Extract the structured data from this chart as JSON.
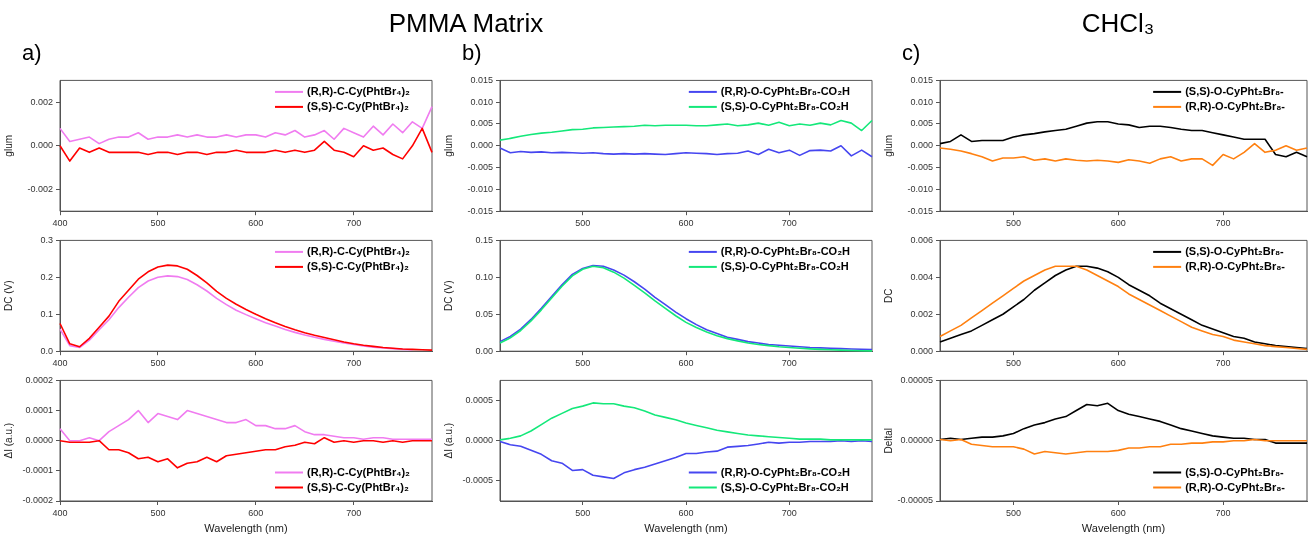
{
  "chart_data": [
    {
      "type": "line",
      "title": "a)",
      "annotations": [
        "PMMA Matrix"
      ],
      "ylabel": "glum",
      "legend": "top right",
      "xlim": [
        400,
        780
      ],
      "xticks": [
        400,
        500,
        600,
        700
      ],
      "ylim": [
        -0.003,
        0.003
      ],
      "yticks": [
        -0.002,
        {
          "value": 0,
          "label": "0.000"
        },
        0.002
      ],
      "x": [
        400,
        410,
        420,
        430,
        440,
        450,
        460,
        470,
        480,
        490,
        500,
        510,
        520,
        530,
        540,
        550,
        560,
        570,
        580,
        590,
        600,
        610,
        620,
        630,
        640,
        650,
        660,
        670,
        680,
        690,
        700,
        710,
        720,
        730,
        740,
        750,
        760,
        770,
        780
      ],
      "series": [
        {
          "name": "(R,R)-C-Cy(PhtBr₄)₂",
          "color": "#f07cf0",
          "values": [
            0.0008,
            0.0002,
            0.0003,
            0.0004,
            0.0001,
            0.0003,
            0.0004,
            0.0004,
            0.0006,
            0.0003,
            0.0004,
            0.0004,
            0.0005,
            0.0004,
            0.0005,
            0.0004,
            0.0004,
            0.0005,
            0.0004,
            0.0005,
            0.0005,
            0.0004,
            0.0006,
            0.0005,
            0.0007,
            0.0004,
            0.0005,
            0.0007,
            0.0003,
            0.0008,
            0.0006,
            0.0004,
            0.0009,
            0.0005,
            0.001,
            0.0006,
            0.0011,
            0.0008,
            0.0018
          ]
        },
        {
          "name": "(S,S)-C-Cy(PhtBr₄)₂",
          "color": "#ff0000",
          "values": [
            0,
            -0.0007,
            -0.0001,
            -0.0003,
            -0.0001,
            -0.0003,
            -0.0003,
            -0.0003,
            -0.0003,
            -0.0004,
            -0.0003,
            -0.0003,
            -0.0004,
            -0.0003,
            -0.0003,
            -0.0004,
            -0.0003,
            -0.0003,
            -0.0002,
            -0.0003,
            -0.0003,
            -0.0003,
            -0.0002,
            -0.0003,
            -0.0002,
            -0.0003,
            -0.0002,
            0.0002,
            -0.0002,
            -0.0003,
            -0.0005,
            0,
            -0.0002,
            -0.0001,
            -0.0004,
            -0.0006,
            0,
            0.0008,
            -0.0003
          ]
        }
      ]
    },
    {
      "type": "line",
      "ylabel": "DC (V)",
      "legend": "top right",
      "xlim": [
        400,
        780
      ],
      "xticks": [
        400,
        500,
        600,
        700
      ],
      "ylim": [
        0,
        0.3
      ],
      "yticks": [
        {
          "value": 0,
          "label": "0.0"
        },
        0.1,
        0.2,
        0.3
      ],
      "x": [
        400,
        410,
        420,
        430,
        440,
        450,
        460,
        470,
        480,
        490,
        500,
        510,
        520,
        530,
        540,
        550,
        560,
        570,
        580,
        590,
        600,
        610,
        620,
        630,
        640,
        650,
        660,
        670,
        680,
        690,
        700,
        710,
        720,
        730,
        740,
        750,
        760,
        770,
        780
      ],
      "series": [
        {
          "name": "(R,R)-C-Cy(PhtBr₄)₂",
          "color": "#f07cf0",
          "values": [
            0.06,
            0.015,
            0.01,
            0.03,
            0.058,
            0.085,
            0.118,
            0.146,
            0.172,
            0.19,
            0.2,
            0.204,
            0.202,
            0.194,
            0.18,
            0.163,
            0.143,
            0.126,
            0.111,
            0.099,
            0.088,
            0.077,
            0.068,
            0.059,
            0.051,
            0.044,
            0.038,
            0.032,
            0.027,
            0.022,
            0.018,
            0.014,
            0.011,
            0.009,
            0.007,
            0.005,
            0.004,
            null,
            null
          ]
        },
        {
          "name": "(S,S)-C-Cy(PhtBr₄)₂",
          "color": "#ff0000",
          "values": [
            0.075,
            0.02,
            0.012,
            0.035,
            0.065,
            0.095,
            0.135,
            0.165,
            0.195,
            0.215,
            0.228,
            0.233,
            0.231,
            0.222,
            0.205,
            0.185,
            0.162,
            0.143,
            0.127,
            0.113,
            0.1,
            0.088,
            0.077,
            0.067,
            0.058,
            0.05,
            0.043,
            0.037,
            0.031,
            0.025,
            0.02,
            0.016,
            0.013,
            0.01,
            0.008,
            0.006,
            0.005,
            0.004,
            0.003
          ]
        }
      ]
    },
    {
      "type": "line",
      "xlabel": "Wavelength (nm)",
      "ylabel": "ΔI (a.u.)",
      "legend": "bottom right",
      "xlim": [
        400,
        780
      ],
      "xticks": [
        400,
        500,
        600,
        700
      ],
      "ylim": [
        -0.0002,
        0.0002
      ],
      "yticks": [
        -0.0002,
        -0.0001,
        {
          "value": 0,
          "label": "0.0000"
        },
        0.0001,
        0.0002
      ],
      "x": [
        400,
        410,
        420,
        430,
        440,
        450,
        460,
        470,
        480,
        490,
        500,
        510,
        520,
        530,
        540,
        550,
        560,
        570,
        580,
        590,
        600,
        610,
        620,
        630,
        640,
        650,
        660,
        670,
        680,
        690,
        700,
        710,
        720,
        730,
        740,
        750,
        760,
        770,
        780
      ],
      "series": [
        {
          "name": "(R,R)-C-Cy(PhtBr₄)₂",
          "color": "#f07cf0",
          "values": [
            4e-05,
            0,
            0,
            1e-05,
            0,
            3e-05,
            5e-05,
            7e-05,
            0.0001,
            6e-05,
            9e-05,
            8e-05,
            7e-05,
            0.0001,
            9e-05,
            8e-05,
            7e-05,
            6e-05,
            6e-05,
            7e-05,
            5e-05,
            5e-05,
            4e-05,
            4e-05,
            5e-05,
            3e-05,
            2e-05,
            2e-05,
            1.5e-05,
            1e-05,
            1e-05,
            5e-06,
            1e-05,
            1e-05,
            5e-06,
            5e-06,
            5e-06,
            5e-06,
            5e-06
          ]
        },
        {
          "name": "(S,S)-C-Cy(PhtBr₄)₂",
          "color": "#ff0000",
          "values": [
            0,
            -5e-06,
            -5e-06,
            -5e-06,
            0,
            -3e-05,
            -3e-05,
            -4e-05,
            -6e-05,
            -5.5e-05,
            -7e-05,
            -6e-05,
            -9e-05,
            -7.5e-05,
            -7e-05,
            -5.5e-05,
            -7e-05,
            -5e-05,
            -4.5e-05,
            -4e-05,
            -3.5e-05,
            -3e-05,
            -3e-05,
            -2e-05,
            -1.5e-05,
            -5e-06,
            -1e-05,
            1e-05,
            -5e-06,
            0,
            -5e-06,
            0,
            0,
            -5e-06,
            0,
            -5e-06,
            0,
            0,
            0
          ]
        }
      ]
    },
    {
      "type": "line",
      "title": "b)",
      "ylabel": "glum",
      "legend": "top right",
      "xlim": [
        420,
        780
      ],
      "xticks": [
        500,
        600,
        700
      ],
      "ylim": [
        -0.015,
        0.015
      ],
      "yticks": [
        -0.015,
        {
          "value": -0.01,
          "label": "-0.010"
        },
        -0.005,
        {
          "value": 0,
          "label": "0.000"
        },
        0.005,
        {
          "value": 0.01,
          "label": "0.010"
        },
        0.015
      ],
      "x": [
        420,
        430,
        440,
        450,
        460,
        470,
        480,
        490,
        500,
        510,
        520,
        530,
        540,
        550,
        560,
        570,
        580,
        590,
        600,
        610,
        620,
        630,
        640,
        650,
        660,
        670,
        680,
        690,
        700,
        710,
        720,
        730,
        740,
        750,
        760,
        770,
        780
      ],
      "series": [
        {
          "name": "(R,R)-O-CyPht₂Br₈-CO₂H",
          "color": "#4646f0",
          "values": [
            -0.0005,
            -0.0016,
            -0.0013,
            -0.0015,
            -0.0014,
            -0.0016,
            -0.0015,
            -0.0016,
            -0.0017,
            -0.0016,
            -0.0018,
            -0.0019,
            -0.0018,
            -0.0019,
            -0.0018,
            -0.0019,
            -0.002,
            -0.0018,
            -0.0016,
            -0.0017,
            -0.0018,
            -0.002,
            -0.0018,
            -0.0017,
            -0.0012,
            -0.002,
            -0.0008,
            -0.0016,
            -0.001,
            -0.0022,
            -0.0011,
            -0.001,
            -0.0012,
            0,
            -0.0023,
            -0.001,
            -0.0025
          ]
        },
        {
          "name": "(S,S)-O-CyPht₂Br₈-CO₂H",
          "color": "#14e87a",
          "values": [
            0.0013,
            0.0017,
            0.0022,
            0.0026,
            0.0029,
            0.0031,
            0.0034,
            0.0037,
            0.0038,
            0.0041,
            0.0042,
            0.0043,
            0.0044,
            0.0045,
            0.0047,
            0.0046,
            0.0047,
            0.0047,
            0.0047,
            0.0046,
            0.0046,
            0.0048,
            0.005,
            0.0046,
            0.0048,
            0.0052,
            0.0047,
            0.0054,
            0.0046,
            0.005,
            0.0047,
            0.0052,
            0.0048,
            0.0058,
            0.0052,
            0.0035,
            0.0058
          ]
        }
      ]
    },
    {
      "type": "line",
      "ylabel": "DC (V)",
      "legend": "top right",
      "xlim": [
        420,
        780
      ],
      "xticks": [
        500,
        600,
        700
      ],
      "ylim": [
        0,
        0.15
      ],
      "yticks": [
        {
          "value": 0,
          "label": "0.00"
        },
        0.05,
        {
          "value": 0.1,
          "label": "0.10"
        },
        0.15
      ],
      "x": [
        420,
        430,
        440,
        450,
        460,
        470,
        480,
        490,
        500,
        510,
        520,
        530,
        540,
        550,
        560,
        570,
        580,
        590,
        600,
        610,
        620,
        630,
        640,
        650,
        660,
        670,
        680,
        690,
        700,
        710,
        720,
        730,
        740,
        750,
        760,
        770,
        780
      ],
      "series": [
        {
          "name": "(R,R)-O-CyPht₂Br₈-CO₂H",
          "color": "#4646f0",
          "values": [
            0.013,
            0.02,
            0.03,
            0.043,
            0.058,
            0.074,
            0.09,
            0.104,
            0.112,
            0.116,
            0.115,
            0.11,
            0.103,
            0.094,
            0.084,
            0.073,
            0.063,
            0.053,
            0.044,
            0.036,
            0.029,
            0.024,
            0.019,
            0.016,
            0.013,
            0.011,
            0.009,
            0.008,
            0.007,
            0.006,
            0.005,
            0.0045,
            0.004,
            0.0035,
            0.003,
            0.0026,
            0.0023
          ]
        },
        {
          "name": "(S,S)-O-CyPht₂Br₈-CO₂H",
          "color": "#14e87a",
          "values": [
            0.011,
            0.018,
            0.028,
            0.041,
            0.056,
            0.072,
            0.088,
            0.102,
            0.111,
            0.115,
            0.113,
            0.107,
            0.099,
            0.089,
            0.079,
            0.068,
            0.058,
            0.048,
            0.039,
            0.032,
            0.026,
            0.021,
            0.017,
            0.014,
            0.011,
            0.009,
            0.0075,
            0.006,
            0.005,
            0.004,
            0.0032,
            0.0025,
            0.002,
            0.0015,
            0.001,
            0.0007,
            0.0004
          ]
        }
      ]
    },
    {
      "type": "line",
      "xlabel": "Wavelength (nm)",
      "ylabel": "ΔI (a.u.)",
      "legend": "bottom right",
      "xlim": [
        420,
        780
      ],
      "xticks": [
        500,
        600,
        700
      ],
      "ylim": [
        -0.00075,
        0.00075
      ],
      "yticks": [
        -0.0005,
        {
          "value": 0,
          "label": "0.0000"
        },
        0.0005
      ],
      "x": [
        420,
        430,
        440,
        450,
        460,
        470,
        480,
        490,
        500,
        510,
        520,
        530,
        540,
        550,
        560,
        570,
        580,
        590,
        600,
        610,
        620,
        630,
        640,
        650,
        660,
        670,
        680,
        690,
        700,
        710,
        720,
        730,
        740,
        750,
        760,
        770,
        780
      ],
      "series": [
        {
          "name": "(R,R)-O-CyPht₂Br₈-CO₂H",
          "color": "#4646f0",
          "values": [
            -1e-05,
            -5e-05,
            -7e-05,
            -0.00012,
            -0.00017,
            -0.00025,
            -0.00028,
            -0.00037,
            -0.00036,
            -0.00043,
            -0.00045,
            -0.00047,
            -0.0004,
            -0.00036,
            -0.00033,
            -0.00029,
            -0.00025,
            -0.00021,
            -0.00016,
            -0.00016,
            -0.00014,
            -0.00013,
            -8e-05,
            -7e-05,
            -6e-05,
            -4e-05,
            -2e-05,
            -3e-05,
            -2e-05,
            -2e-05,
            -1e-05,
            -1e-05,
            -1e-05,
            0,
            -1e-05,
            0,
            -1e-05
          ]
        },
        {
          "name": "(S,S)-O-CyPht₂Br₈-CO₂H",
          "color": "#14e87a",
          "values": [
            1e-05,
            3e-05,
            6e-05,
            0.00012,
            0.0002,
            0.00028,
            0.00034,
            0.0004,
            0.00043,
            0.00047,
            0.00046,
            0.00046,
            0.00043,
            0.00041,
            0.00037,
            0.00032,
            0.00029,
            0.00026,
            0.00022,
            0.00019,
            0.00016,
            0.00013,
            0.00011,
            9e-05,
            7e-05,
            6e-05,
            5e-05,
            4e-05,
            3e-05,
            2e-05,
            2e-05,
            2e-05,
            1e-05,
            1e-05,
            1e-05,
            1e-05,
            1e-05
          ]
        }
      ]
    },
    {
      "type": "line",
      "title": "c)",
      "annotations": [
        "CHCl₃"
      ],
      "ylabel": "glum",
      "legend": "top right",
      "xlim": [
        430,
        780
      ],
      "xticks": [
        500,
        600,
        700
      ],
      "ylim": [
        -0.015,
        0.015
      ],
      "yticks": [
        -0.015,
        {
          "value": -0.01,
          "label": "-0.010"
        },
        -0.005,
        {
          "value": 0,
          "label": "0.000"
        },
        0.005,
        {
          "value": 0.01,
          "label": "0.010"
        },
        0.015
      ],
      "x": [
        430,
        440,
        450,
        460,
        470,
        480,
        490,
        500,
        510,
        520,
        530,
        540,
        550,
        560,
        570,
        580,
        590,
        600,
        610,
        620,
        630,
        640,
        650,
        660,
        670,
        680,
        690,
        700,
        710,
        720,
        730,
        740,
        750,
        760,
        770,
        780
      ],
      "series": [
        {
          "name": "(S,S)-O-CyPht₂Br₈-",
          "color": "#000000",
          "values": [
            0.0005,
            0.001,
            0.0025,
            0.001,
            0.0012,
            0.0012,
            0.0012,
            0.002,
            0.0025,
            0.0028,
            0.0032,
            0.0035,
            0.0038,
            0.0045,
            0.0052,
            0.0055,
            0.0055,
            0.005,
            0.0048,
            0.0042,
            0.0045,
            0.0045,
            0.0042,
            0.0038,
            0.0035,
            0.0035,
            0.003,
            0.0025,
            0.002,
            0.0015,
            0.0015,
            0.0015,
            -0.002,
            -0.0025,
            -0.0015,
            -0.0025
          ]
        },
        {
          "name": "(R,R)-O-CyPht₂Br₈-",
          "color": "#ff8010",
          "values": [
            -0.0005,
            -0.0008,
            -0.0012,
            -0.0018,
            -0.0025,
            -0.0035,
            -0.0028,
            -0.0028,
            -0.0025,
            -0.0033,
            -0.003,
            -0.0035,
            -0.003,
            -0.0033,
            -0.0035,
            -0.0033,
            -0.0035,
            -0.0038,
            -0.0032,
            -0.0035,
            -0.004,
            -0.003,
            -0.0025,
            -0.0035,
            -0.003,
            -0.003,
            -0.0045,
            -0.002,
            -0.003,
            -0.0015,
            0.0005,
            -0.0015,
            -0.001,
            0,
            -0.001,
            -0.0005
          ]
        }
      ]
    },
    {
      "type": "line",
      "ylabel": "DC",
      "legend": "top right",
      "xlim": [
        430,
        780
      ],
      "xticks": [
        500,
        600,
        700
      ],
      "ylim": [
        0,
        0.006
      ],
      "yticks": [
        {
          "value": 0,
          "label": "0.000"
        },
        0.002,
        0.004,
        0.006
      ],
      "x": [
        430,
        440,
        450,
        460,
        470,
        480,
        490,
        500,
        510,
        520,
        530,
        540,
        550,
        560,
        570,
        580,
        590,
        600,
        610,
        620,
        630,
        640,
        650,
        660,
        670,
        680,
        690,
        700,
        710,
        720,
        730,
        740,
        750,
        760,
        770,
        780
      ],
      "series": [
        {
          "name": "(S,S)-O-CyPht₂Br₈-",
          "color": "#000000",
          "values": [
            0.0005,
            0.0007,
            0.0009,
            0.0011,
            0.0014,
            0.0017,
            0.002,
            0.0024,
            0.0028,
            0.0033,
            0.0037,
            0.0041,
            0.0044,
            0.0046,
            0.0046,
            0.0045,
            0.0043,
            0.004,
            0.0036,
            0.0033,
            0.003,
            0.0026,
            0.0023,
            0.002,
            0.0017,
            0.0014,
            0.0012,
            0.001,
            0.0008,
            0.0007,
            0.0005,
            0.0004,
            0.0003,
            0.00025,
            0.0002,
            0.00015
          ]
        },
        {
          "name": "(R,R)-O-CyPht₂Br₈-",
          "color": "#ff8010",
          "values": [
            0.0008,
            0.0011,
            0.0014,
            0.0018,
            0.0022,
            0.0026,
            0.003,
            0.0034,
            0.0038,
            0.0041,
            0.0044,
            0.0046,
            0.0046,
            0.0046,
            0.0044,
            0.0041,
            0.0038,
            0.0035,
            0.0031,
            0.0028,
            0.0025,
            0.0022,
            0.0019,
            0.0016,
            0.0013,
            0.0011,
            0.0009,
            0.0008,
            0.0006,
            0.0005,
            0.0004,
            0.0003,
            0.00025,
            0.0002,
            0.00015,
            0.0001
          ]
        }
      ]
    },
    {
      "type": "line",
      "xlabel": "Wavelength (nm)",
      "ylabel": "Deltal",
      "legend": "bottom right",
      "xlim": [
        430,
        780
      ],
      "xticks": [
        500,
        600,
        700
      ],
      "ylim": [
        -5e-05,
        5e-05
      ],
      "yticks": [
        {
          "value": -5e-05,
          "label": "-0.00005"
        },
        {
          "value": 0,
          "label": "0.00000"
        },
        {
          "value": 5e-05,
          "label": "0.00005"
        }
      ],
      "x": [
        430,
        440,
        450,
        460,
        470,
        480,
        490,
        500,
        510,
        520,
        530,
        540,
        550,
        560,
        570,
        580,
        590,
        600,
        610,
        620,
        630,
        640,
        650,
        660,
        670,
        680,
        690,
        700,
        710,
        720,
        730,
        740,
        750,
        760,
        770,
        780
      ],
      "series": [
        {
          "name": "(S,S)-O-CyPht₂Br₈-",
          "color": "#000000",
          "values": [
            1e-06,
            2e-06,
            1e-06,
            2e-06,
            3e-06,
            3e-06,
            4e-06,
            6e-06,
            1e-05,
            1.3e-05,
            1.5e-05,
            1.8e-05,
            2e-05,
            2.5e-05,
            3e-05,
            2.9e-05,
            3.1e-05,
            2.5e-05,
            2.2e-05,
            2e-05,
            1.8e-05,
            1.6e-05,
            1.3e-05,
            1e-05,
            8e-06,
            6e-06,
            4e-06,
            3e-06,
            2e-06,
            2e-06,
            1e-06,
            1e-06,
            -2e-06,
            -2e-06,
            -2e-06,
            -2e-06
          ]
        },
        {
          "name": "(R,R)-O-CyPht₂Br₈-",
          "color": "#ff8010",
          "values": [
            1e-06,
            0,
            1e-06,
            -3e-06,
            -4e-06,
            -5e-06,
            -5e-06,
            -5e-06,
            -7e-06,
            -1.1e-05,
            -9e-06,
            -1e-05,
            -1.1e-05,
            -1e-05,
            -9e-06,
            -9e-06,
            -9e-06,
            -8e-06,
            -6e-06,
            -6e-06,
            -5e-06,
            -5e-06,
            -3e-06,
            -3e-06,
            -2e-06,
            -2e-06,
            -1e-06,
            -1e-06,
            0,
            0,
            1e-06,
            0,
            0,
            0,
            0,
            0
          ]
        }
      ]
    }
  ]
}
